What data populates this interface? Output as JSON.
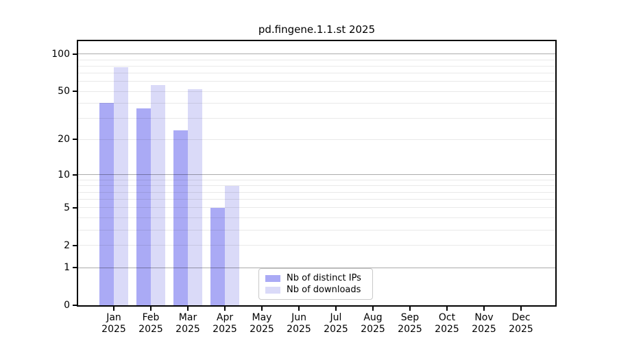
{
  "title": "pd.fingene.1.1.st 2025",
  "colors": {
    "distinct_ips": "#aaaaf5",
    "downloads": "#dadaf8",
    "spine": "#000000",
    "grid_minor": "rgba(0,0,0,0.085)",
    "grid_major": "rgba(0,0,0,0.33)"
  },
  "chart_data": {
    "type": "bar",
    "title": "pd.fingene.1.1.st 2025",
    "xlabel": "",
    "ylabel": "",
    "yscale": "log10(1+x)",
    "ylim": [
      0,
      127
    ],
    "grid": true,
    "legend_position": "inside lower center",
    "categories": [
      "Jan 2025",
      "Feb 2025",
      "Mar 2025",
      "Apr 2025",
      "May 2025",
      "Jun 2025",
      "Jul 2025",
      "Aug 2025",
      "Sep 2025",
      "Oct 2025",
      "Nov 2025",
      "Dec 2025"
    ],
    "series": [
      {
        "name": "Nb of distinct IPs",
        "color": "#aaaaf5",
        "values": [
          40,
          36,
          24,
          5,
          null,
          null,
          null,
          null,
          null,
          null,
          null,
          null
        ]
      },
      {
        "name": "Nb of downloads",
        "color": "#dadaf8",
        "values": [
          78,
          56,
          52,
          8,
          null,
          null,
          null,
          null,
          null,
          null,
          null,
          null
        ]
      }
    ],
    "ytick_values": [
      0,
      1,
      2,
      5,
      10,
      20,
      50,
      100
    ],
    "grid_major_values": [
      1,
      10,
      100
    ],
    "grid_minor_values": [
      2,
      3,
      4,
      5,
      6,
      7,
      8,
      9,
      20,
      30,
      40,
      50,
      60,
      70,
      80,
      90
    ]
  },
  "x_axis": {
    "months": [
      "Jan",
      "Feb",
      "Mar",
      "Apr",
      "May",
      "Jun",
      "Jul",
      "Aug",
      "Sep",
      "Oct",
      "Nov",
      "Dec"
    ],
    "year": "2025"
  }
}
